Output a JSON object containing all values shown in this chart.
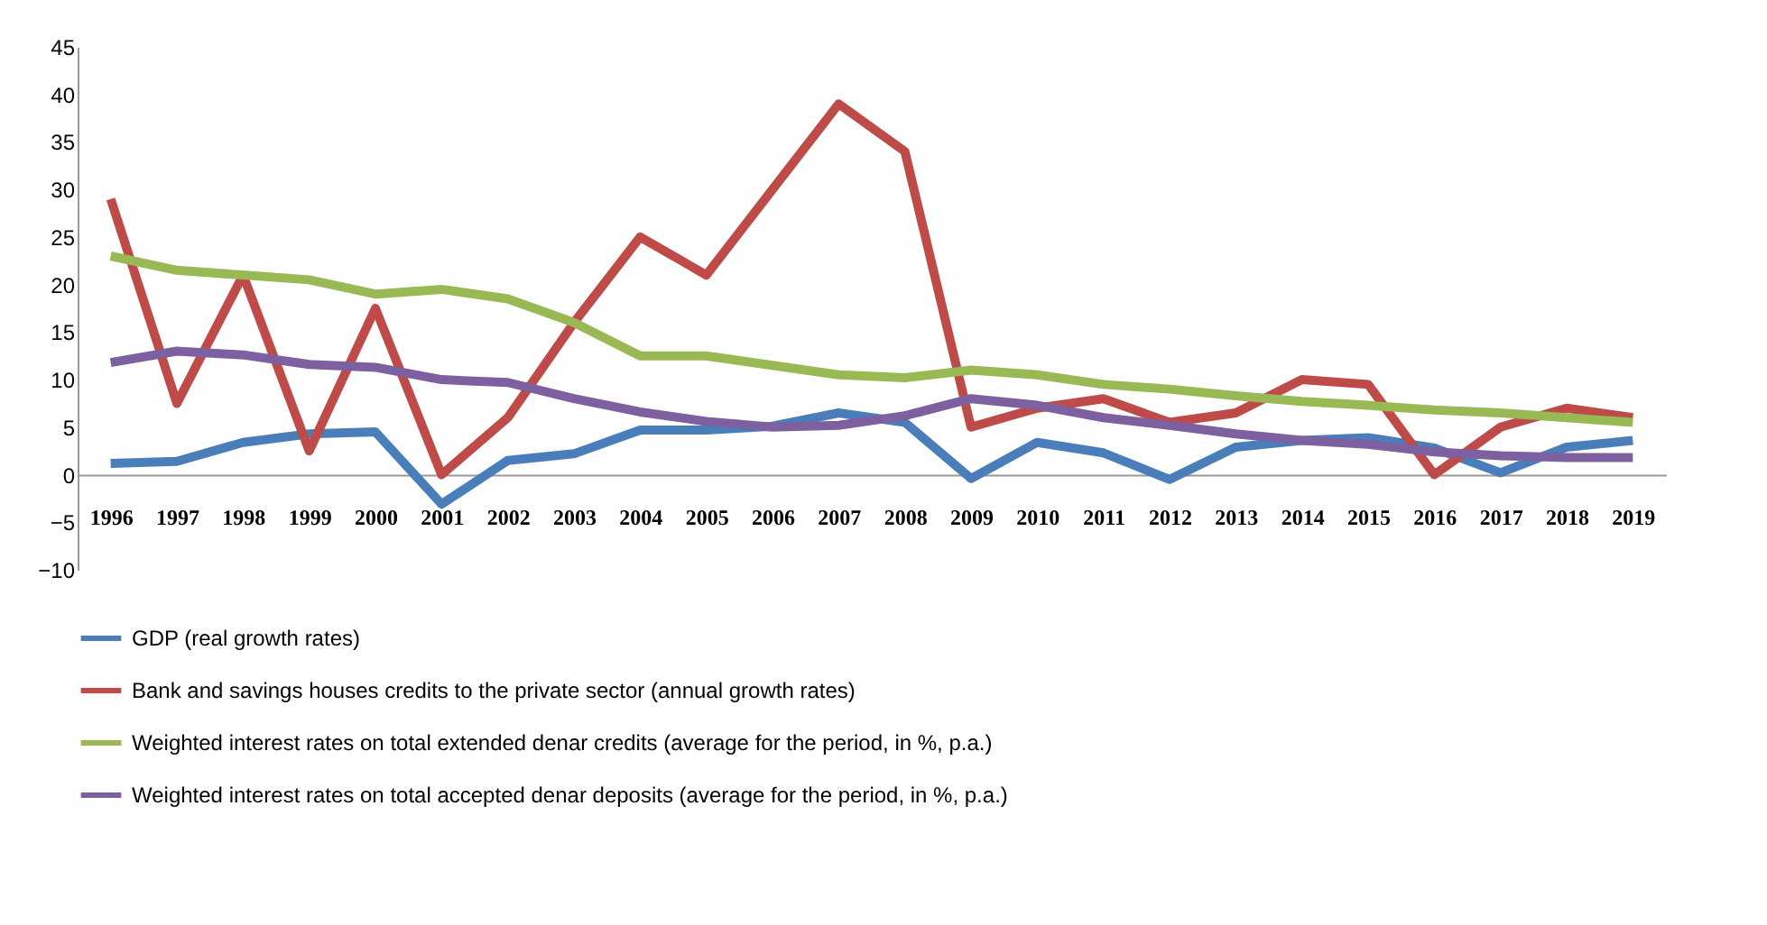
{
  "chart_data": {
    "type": "line",
    "categories": [
      "1996",
      "1997",
      "1998",
      "1999",
      "2000",
      "2001",
      "2002",
      "2003",
      "2004",
      "2005",
      "2006",
      "2007",
      "2008",
      "2009",
      "2010",
      "2011",
      "2012",
      "2013",
      "2014",
      "2015",
      "2016",
      "2017",
      "2018",
      "2019"
    ],
    "series": [
      {
        "name": "GDP (real growth rates)",
        "color": "#4a7ebb",
        "values": [
          1.2,
          1.4,
          3.4,
          4.3,
          4.5,
          -3.1,
          1.5,
          2.2,
          4.7,
          4.7,
          5.1,
          6.5,
          5.5,
          -0.4,
          3.4,
          2.3,
          -0.5,
          2.9,
          3.6,
          3.9,
          2.8,
          0.2,
          2.9,
          3.6
        ]
      },
      {
        "name": "Bank and savings houses credits to the private sector (annual growth rates)",
        "color": "#be4b48",
        "values": [
          29,
          7.5,
          21,
          2.5,
          17.5,
          0,
          6,
          16,
          25,
          21,
          30,
          39,
          34,
          5,
          7,
          8,
          5.5,
          6.5,
          10,
          9.5,
          0,
          5,
          7,
          6
        ]
      },
      {
        "name": "Weighted interest rates on total extended denar credits (average for the period, in %, p.a.)",
        "color": "#98b954",
        "values": [
          23,
          21.5,
          21,
          20.5,
          19,
          19.5,
          18.5,
          16,
          12.5,
          12.5,
          11.5,
          10.5,
          10.2,
          11,
          10.5,
          9.5,
          9,
          8.3,
          7.7,
          7.3,
          6.8,
          6.5,
          6,
          5.5
        ]
      },
      {
        "name": "Weighted interest rates on total accepted denar deposits (average for the period, in %, p.a.)",
        "color": "#7d60a0",
        "values": [
          11.8,
          13,
          12.6,
          11.6,
          11.3,
          10,
          9.7,
          8,
          6.6,
          5.6,
          5,
          5.2,
          6.2,
          8,
          7.3,
          6,
          5.2,
          4.3,
          3.6,
          3.2,
          2.4,
          2,
          1.8,
          1.8
        ]
      }
    ],
    "ylim": [
      -10,
      45
    ],
    "yticks": [
      -10,
      -5,
      0,
      5,
      10,
      15,
      20,
      25,
      30,
      35,
      40,
      45
    ],
    "grid": false,
    "legend": "bottom",
    "marker": "none",
    "line_style": "solid"
  }
}
